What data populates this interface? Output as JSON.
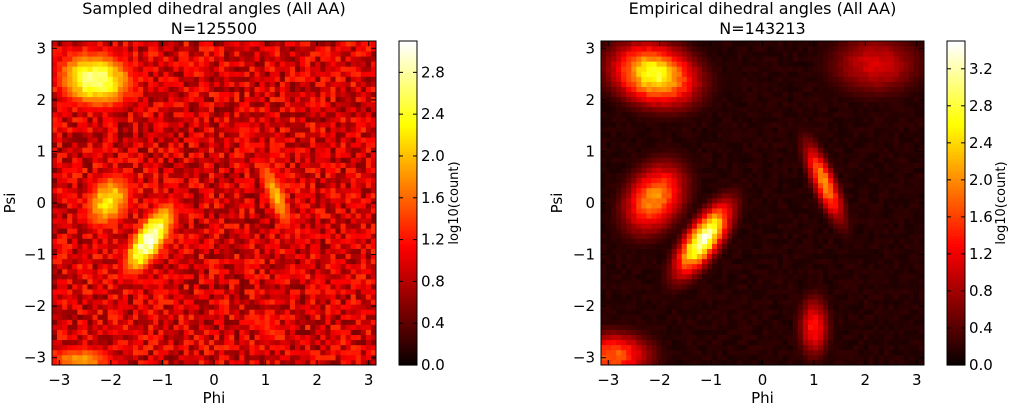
{
  "chart_data": [
    {
      "type": "heatmap",
      "title": "Sampled dihedral angles (All AA)",
      "subtitle": "N=125500",
      "xlabel": "Phi",
      "ylabel": "Psi",
      "xlim": [
        -3.1416,
        3.1416
      ],
      "ylim": [
        -3.1416,
        3.1416
      ],
      "xticks": [
        "−3",
        "−2",
        "−1",
        "0",
        "1",
        "2",
        "3"
      ],
      "yticks": [
        "3",
        "2",
        "1",
        "0",
        "−1",
        "−2",
        "−3"
      ],
      "colorbar_label": "log10(count)",
      "colorbar_range": [
        0.0,
        3.1
      ],
      "colorbar_ticks": [
        "0.0",
        "0.4",
        "0.8",
        "1.2",
        "1.6",
        "2.0",
        "2.4",
        "2.8"
      ],
      "colormap": "hot",
      "bins": 64,
      "background_level": 0.95,
      "clusters": [
        {
          "phi": -1.25,
          "psi": -0.7,
          "peak": 3.05,
          "sphi": 0.4,
          "spsi": 0.55,
          "rho": 0.72
        },
        {
          "phi": -2.05,
          "psi": 0.05,
          "peak": 2.3,
          "sphi": 0.4,
          "spsi": 0.45,
          "rho": 0.3
        },
        {
          "phi": -2.3,
          "psi": 2.4,
          "peak": 2.75,
          "sphi": 0.6,
          "spsi": 0.45,
          "rho": -0.1
        },
        {
          "phi": -2.6,
          "psi": -3.05,
          "peak": 1.9,
          "sphi": 0.6,
          "spsi": 0.25,
          "rho": 0.0
        },
        {
          "phi": 1.2,
          "psi": 0.15,
          "peak": 2.0,
          "sphi": 0.3,
          "spsi": 0.65,
          "rho": -0.8
        },
        {
          "phi": 1.05,
          "psi": -2.4,
          "peak": 1.3,
          "sphi": 0.25,
          "spsi": 0.4,
          "rho": 0.0
        }
      ]
    },
    {
      "type": "heatmap",
      "title": "Empirical dihedral angles (All AA)",
      "subtitle": "N=143213",
      "xlabel": "Phi",
      "ylabel": "Psi",
      "xlim": [
        -3.1416,
        3.1416
      ],
      "ylim": [
        -3.1416,
        3.1416
      ],
      "xticks": [
        "−3",
        "−2",
        "−1",
        "0",
        "1",
        "2",
        "3"
      ],
      "yticks": [
        "3",
        "2",
        "1",
        "0",
        "−1",
        "−2",
        "−3"
      ],
      "colorbar_label": "log10(count)",
      "colorbar_range": [
        0.0,
        3.5
      ],
      "colorbar_ticks": [
        "0.0",
        "0.4",
        "0.8",
        "1.2",
        "1.6",
        "2.0",
        "2.4",
        "2.8",
        "3.2"
      ],
      "colormap": "hot",
      "bins": 64,
      "background_level": 0.15,
      "clusters": [
        {
          "phi": -1.15,
          "psi": -0.7,
          "peak": 3.4,
          "sphi": 0.35,
          "spsi": 0.45,
          "rho": 0.72
        },
        {
          "phi": -2.1,
          "psi": 0.1,
          "peak": 2.1,
          "sphi": 0.4,
          "spsi": 0.45,
          "rho": 0.3
        },
        {
          "phi": -2.1,
          "psi": 2.5,
          "peak": 2.8,
          "sphi": 0.55,
          "spsi": 0.4,
          "rho": -0.2
        },
        {
          "phi": -2.9,
          "psi": -2.95,
          "peak": 1.8,
          "sphi": 0.5,
          "spsi": 0.3,
          "rho": 0.0
        },
        {
          "phi": 1.2,
          "psi": 0.4,
          "peak": 2.1,
          "sphi": 0.25,
          "spsi": 0.5,
          "rho": -0.78
        },
        {
          "phi": 1.0,
          "psi": -2.4,
          "peak": 1.4,
          "sphi": 0.2,
          "spsi": 0.4,
          "rho": 0.0
        },
        {
          "phi": 2.2,
          "psi": 2.7,
          "peak": 1.1,
          "sphi": 0.6,
          "spsi": 0.4,
          "rho": 0.0
        }
      ]
    }
  ]
}
